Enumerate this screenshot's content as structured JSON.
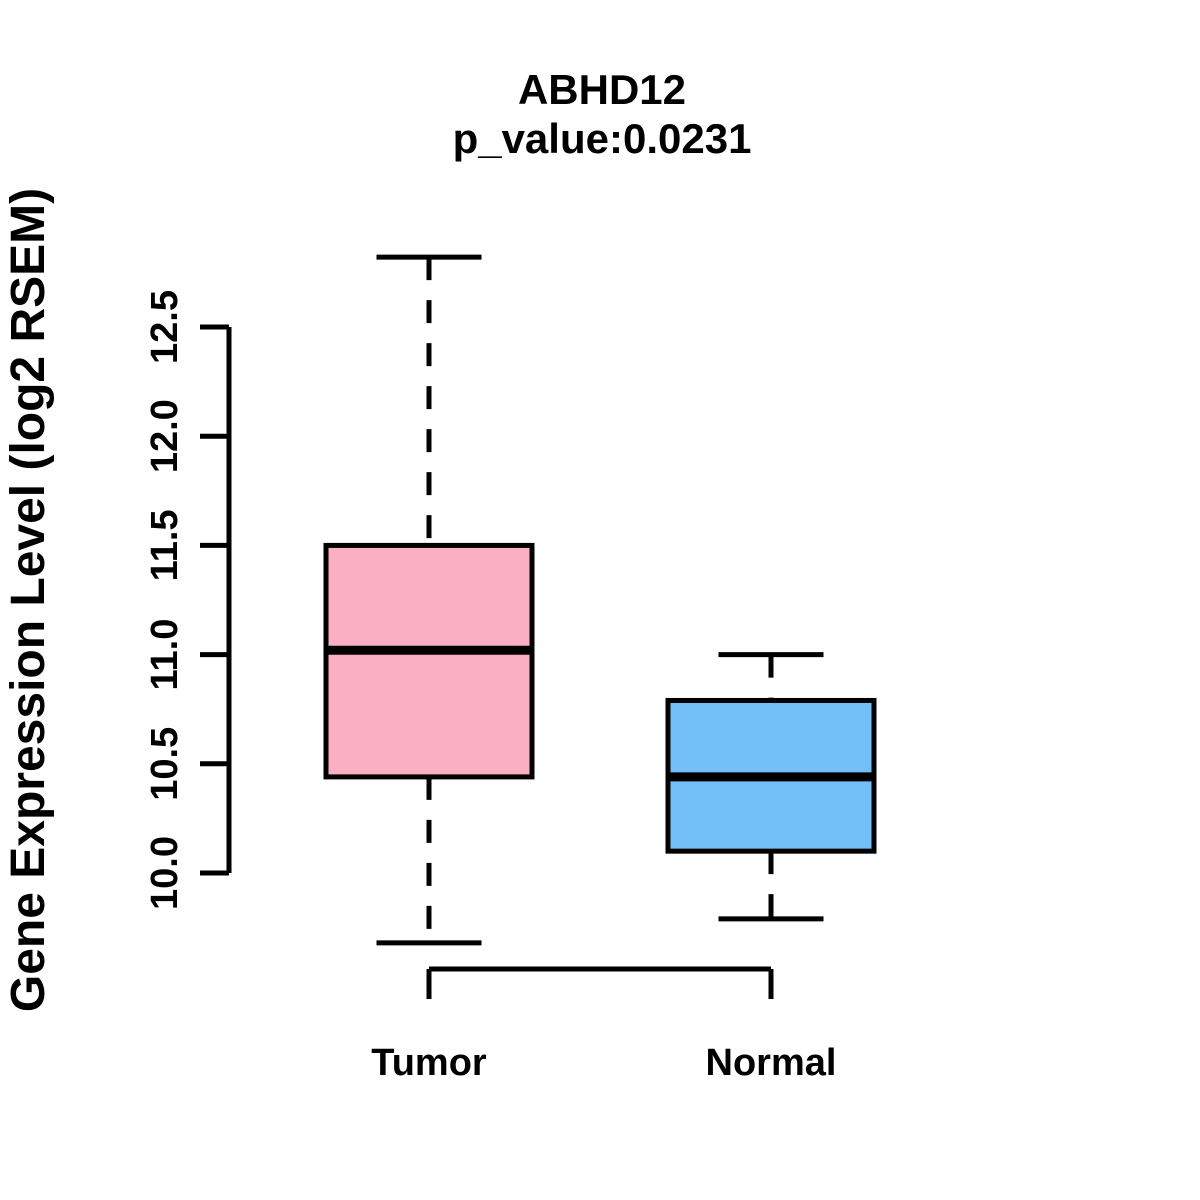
{
  "chart_data": {
    "type": "boxplot",
    "title": "ABHD12",
    "subtitle": "p_value:0.0231",
    "ylabel": "Gene Expression Level (log2 RSEM)",
    "categories": [
      "Tumor",
      "Normal"
    ],
    "series": [
      {
        "name": "Tumor",
        "whisker_low": 9.68,
        "q1": 10.44,
        "median": 11.02,
        "q3": 11.5,
        "whisker_high": 12.82,
        "fill_color": "#FBAFC2"
      },
      {
        "name": "Normal",
        "whisker_low": 9.79,
        "q1": 10.1,
        "median": 10.44,
        "q3": 10.79,
        "whisker_high": 11.0,
        "fill_color": "#73BFF7"
      }
    ],
    "ylim": [
      10.0,
      12.5
    ],
    "yticks": [
      "10.0",
      "10.5",
      "11.0",
      "11.5",
      "12.0",
      "12.5"
    ],
    "grid": false,
    "legend": "none",
    "box_border_color": "#000000",
    "background_color": "#FFFFFF"
  }
}
